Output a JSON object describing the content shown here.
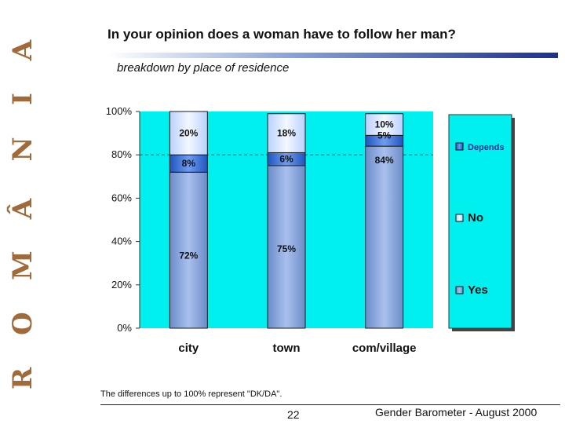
{
  "side_banner": {
    "letters": [
      "R",
      "O",
      "M",
      "Â",
      "N",
      "I",
      "A"
    ]
  },
  "header": {
    "title": "In your opinion does a woman have to follow her man?",
    "subtitle": "breakdown by place of residence"
  },
  "footnote": "The differences up to 100% represent \"DK/DA\".",
  "page_number": "22",
  "footer_text": "Gender Barometer - August 2000",
  "colors": {
    "plot_bg": "#00f0f0",
    "yes": "#7f9ed8",
    "no": "#cfe0ff",
    "depends": "#2c66d0"
  },
  "chart_data": {
    "type": "bar",
    "stacked": true,
    "categories": [
      "city",
      "town",
      "com/village"
    ],
    "series": [
      {
        "name": "Yes",
        "values": [
          72,
          75,
          84
        ],
        "labels": [
          "72%",
          "75%",
          "84%"
        ]
      },
      {
        "name": "No",
        "values": [
          20,
          18,
          10
        ],
        "labels": [
          "20%",
          "18%",
          "10%"
        ]
      },
      {
        "name": "Depends",
        "values": [
          8,
          6,
          5
        ],
        "labels": [
          "8%",
          "6%",
          "5%"
        ]
      }
    ],
    "stack_order": [
      "Yes",
      "Depends",
      "No"
    ],
    "ylim": [
      0,
      100
    ],
    "yticks": [
      "0%",
      "20%",
      "40%",
      "60%",
      "80%",
      "100%"
    ],
    "reference_line": 80,
    "legend": [
      "Depends",
      "No",
      "Yes"
    ],
    "legend_position": "right"
  }
}
